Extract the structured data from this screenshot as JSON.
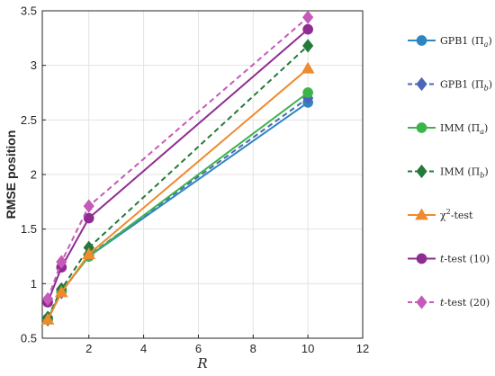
{
  "chart_data": {
    "type": "line",
    "xlabel": "R",
    "ylabel": "RMSE position",
    "xlim": [
      0.3,
      12
    ],
    "ylim": [
      0.5,
      3.5
    ],
    "xticks": [
      2,
      4,
      6,
      8,
      10,
      12
    ],
    "yticks": [
      0.5,
      1,
      1.5,
      2,
      2.5,
      3,
      3.5
    ],
    "grid": true,
    "legend_position": "right-outside",
    "x": [
      0.5,
      1,
      2,
      10
    ],
    "series": [
      {
        "name": "GPB1 (Π_a)",
        "legend_main": "GPB1 (Π",
        "legend_sub": "a",
        "legend_tail": ")",
        "color": "#2e86c1",
        "dash": "solid",
        "marker": "circle",
        "values": [
          0.68,
          0.93,
          1.25,
          2.66
        ]
      },
      {
        "name": "GPB1 (Π_b)",
        "legend_main": "GPB1 (Π",
        "legend_sub": "b",
        "legend_tail": ")",
        "color": "#4a66b8",
        "dash": "dashed",
        "marker": "diamond",
        "values": [
          0.67,
          0.92,
          1.26,
          2.7
        ]
      },
      {
        "name": "IMM (Π_a)",
        "legend_main": "IMM (Π",
        "legend_sub": "a",
        "legend_tail": ")",
        "color": "#3cb44b",
        "dash": "solid",
        "marker": "circle",
        "values": [
          0.67,
          0.93,
          1.25,
          2.75
        ]
      },
      {
        "name": "IMM (Π_b)",
        "legend_main": "IMM (Π",
        "legend_sub": "b",
        "legend_tail": ")",
        "color": "#237a3a",
        "dash": "dashed",
        "marker": "diamond",
        "values": [
          0.69,
          0.95,
          1.33,
          3.18
        ]
      },
      {
        "name": "χ²-test",
        "legend_main": "χ",
        "legend_sup": "2",
        "legend_tail": "-test",
        "color": "#ef8a2e",
        "dash": "solid",
        "marker": "triangle",
        "values": [
          0.67,
          0.92,
          1.27,
          2.97
        ]
      },
      {
        "name": "t-test (10)",
        "legend_italic": "t",
        "legend_tail": "-test (10)",
        "color": "#8e2c91",
        "dash": "solid",
        "marker": "circle",
        "values": [
          0.83,
          1.15,
          1.6,
          3.33
        ]
      },
      {
        "name": "t-test (20)",
        "legend_italic": "t",
        "legend_tail": "-test (20)",
        "color": "#c55ab8",
        "dash": "dashed",
        "marker": "diamond",
        "values": [
          0.86,
          1.2,
          1.71,
          3.44
        ]
      }
    ]
  }
}
